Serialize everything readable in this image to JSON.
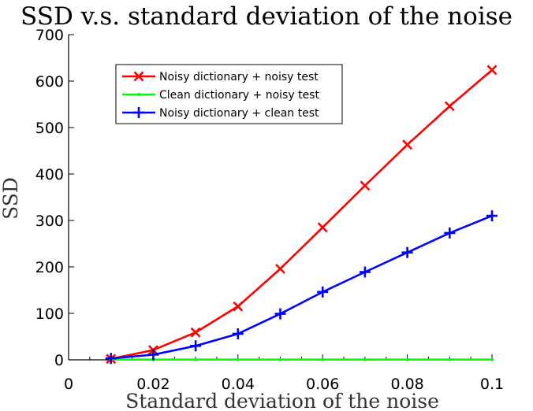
{
  "chart_data": {
    "type": "line",
    "title": "SSD v.s. standard deviation of the noise",
    "xlabel": "Standard deviation of the noise",
    "ylabel": "SSD",
    "xlim": [
      0,
      0.1
    ],
    "ylim": [
      0,
      700
    ],
    "xticks": [
      "0",
      "0.02",
      "0.04",
      "0.06",
      "0.08",
      "0.1"
    ],
    "yticks": [
      "0",
      "100",
      "200",
      "300",
      "400",
      "500",
      "600",
      "700"
    ],
    "legend_position": "top-left",
    "x": [
      0.01,
      0.02,
      0.03,
      0.04,
      0.05,
      0.06,
      0.07,
      0.08,
      0.09,
      0.1
    ],
    "series": [
      {
        "name": "Noisy dictionary + noisy test",
        "color": "#ff0000",
        "marker": "x",
        "values": [
          2,
          21,
          59,
          115,
          196,
          285,
          375,
          463,
          546,
          624
        ]
      },
      {
        "name": "Clean dictionary + noisy test",
        "color": "#00ff00",
        "marker": "dot",
        "values": [
          0.5,
          0.5,
          0.5,
          0.5,
          0.5,
          0.5,
          0.5,
          0.5,
          0.5,
          0.5
        ]
      },
      {
        "name": "Noisy dictionary + clean test",
        "color": "#0000ff",
        "marker": "plus",
        "values": [
          3,
          11,
          30,
          56,
          99,
          146,
          189,
          231,
          273,
          310
        ]
      }
    ]
  }
}
